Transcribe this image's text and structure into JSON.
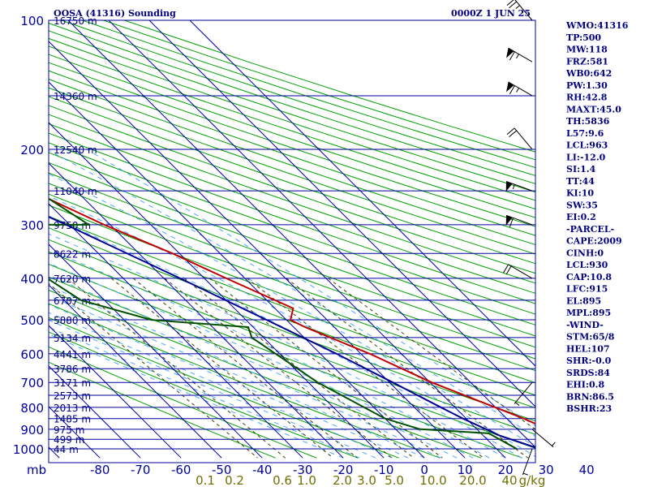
{
  "header": {
    "title": "OOSA (41316) Sounding",
    "time": "0000Z  1 JUN 25"
  },
  "chart_data": {
    "type": "line",
    "title": "OOSA (41316) Sounding",
    "subtitle": "0000Z  1 JUN 25",
    "y_unit": "mb",
    "x_unit_label": "mb",
    "mixing_unit": "g/kg",
    "pressure_levels": [
      100,
      200,
      300,
      400,
      500,
      600,
      700,
      800,
      900,
      1000
    ],
    "temperature_ticks": [
      -80,
      -70,
      -60,
      -50,
      -40,
      -30,
      -20,
      -10,
      0,
      10,
      20,
      30,
      40
    ],
    "xlim": [
      -80,
      40
    ],
    "ylim": [
      1050,
      100
    ],
    "mixing_ratio_labels": [
      "0.1",
      "0.2",
      "0.6",
      "1.0",
      "2.0",
      "3.0",
      "5.0",
      "10.0",
      "20.0",
      "40",
      "g/kg"
    ],
    "height_labels": [
      {
        "p": 100,
        "label": "16750 m"
      },
      {
        "p": 150,
        "label": "14360 m"
      },
      {
        "p": 200,
        "label": "12540 m"
      },
      {
        "p": 250,
        "label": "11040 m"
      },
      {
        "p": 300,
        "label": "9750 m"
      },
      {
        "p": 350,
        "label": "8622 m"
      },
      {
        "p": 400,
        "label": "7620 m"
      },
      {
        "p": 450,
        "label": "6707 m"
      },
      {
        "p": 500,
        "label": "5880 m"
      },
      {
        "p": 550,
        "label": "5134 m"
      },
      {
        "p": 600,
        "label": "4441 m"
      },
      {
        "p": 650,
        "label": "3786 m"
      },
      {
        "p": 700,
        "label": "3171 m"
      },
      {
        "p": 750,
        "label": "2573 m"
      },
      {
        "p": 800,
        "label": "2013 m"
      },
      {
        "p": 850,
        "label": "1485 m"
      },
      {
        "p": 900,
        "label": "975 m"
      },
      {
        "p": 950,
        "label": "499 m"
      },
      {
        "p": 1000,
        "label": "44 m"
      }
    ],
    "series": [
      {
        "name": "Temperature",
        "color": "#c00000",
        "points": [
          [
            1000,
            30.6
          ],
          [
            925,
            38.5
          ],
          [
            910,
            38.1
          ],
          [
            850,
            34.2
          ],
          [
            700,
            20.4
          ],
          [
            600,
            12.2
          ],
          [
            520,
            2.8
          ],
          [
            500,
            1.0
          ],
          [
            470,
            4.5
          ],
          [
            400,
            -4.6
          ],
          [
            350,
            -11.7
          ],
          [
            300,
            -21.5
          ],
          [
            260,
            -29.0
          ],
          [
            240,
            -36.5
          ],
          [
            200,
            -46.5
          ],
          [
            150,
            -63.0
          ],
          [
            125,
            -71.5
          ],
          [
            100,
            -80.0
          ]
        ]
      },
      {
        "name": "Dewpoint",
        "color": "#005000",
        "points": [
          [
            1000,
            25.0
          ],
          [
            920,
            21.9
          ],
          [
            900,
            6.0
          ],
          [
            850,
            0.0
          ],
          [
            700,
            -7.7
          ],
          [
            550,
            -12.9
          ],
          [
            520,
            -11.2
          ],
          [
            500,
            -33.3
          ],
          [
            450,
            -45.8
          ],
          [
            330,
            -53.5
          ],
          [
            300,
            -54.5
          ],
          [
            300,
            -25.3
          ],
          [
            260,
            -28.8
          ],
          [
            250,
            -36.2
          ],
          [
            235,
            -34.9
          ],
          [
            225,
            -45.0
          ],
          [
            200,
            -47.8
          ],
          [
            190,
            -49.2
          ],
          [
            180,
            -60.0
          ],
          [
            170,
            -59.5
          ],
          [
            160,
            -65.0
          ],
          [
            150,
            -69.5
          ],
          [
            120,
            -66.0
          ],
          [
            120,
            -77.0
          ],
          [
            110,
            -78.0
          ],
          [
            105,
            -76.8
          ],
          [
            100,
            -86.0
          ]
        ]
      },
      {
        "name": "Parcel",
        "color": "#000090",
        "points": [
          [
            1000,
            30.6
          ],
          [
            930,
            24.0
          ],
          [
            850,
            19.2
          ],
          [
            800,
            16.5
          ],
          [
            700,
            10.8
          ],
          [
            600,
            4.0
          ],
          [
            500,
            -4.9
          ],
          [
            400,
            -16.0
          ],
          [
            300,
            -30.9
          ],
          [
            250,
            -40.8
          ],
          [
            200,
            -52.3
          ],
          [
            150,
            -66.0
          ],
          [
            100,
            -83.0
          ]
        ]
      }
    ],
    "wind_barbs": [
      {
        "p": 100,
        "dir": 320,
        "spd": 25
      },
      {
        "p": 125,
        "dir": 300,
        "spd": 65
      },
      {
        "p": 150,
        "dir": 300,
        "spd": 65
      },
      {
        "p": 200,
        "dir": 320,
        "spd": 20
      },
      {
        "p": 250,
        "dir": 290,
        "spd": 55
      },
      {
        "p": 300,
        "dir": 290,
        "spd": 60
      },
      {
        "p": 400,
        "dir": 300,
        "spd": 20
      },
      {
        "p": 700,
        "dir": 220,
        "spd": 5
      },
      {
        "p": 900,
        "dir": 130,
        "spd": 5
      },
      {
        "p": 1000,
        "dir": 200,
        "spd": 5
      }
    ],
    "indices": [
      "WMO:41316",
      "TP:500",
      "MW:118",
      "FRZ:581",
      "WB0:642",
      "PW:1.30",
      "RH:42.8",
      "MAXT:45.0",
      "TH:5836",
      "L57:9.6",
      "LCL:963",
      "LI:-12.0",
      "SI:1.4",
      "TT:44",
      "KI:10",
      "SW:35",
      "EI:0.2",
      "-PARCEL-",
      "CAPE:2009",
      "CINH:0",
      "LCL:930",
      "CAP:10.8",
      "LFC:915",
      "EL:895",
      "MPL:895",
      "-WIND-",
      "STM:65/8",
      "HEL:107",
      "SHR:-0.0",
      "SRDS:84",
      "EHI:0.8",
      "BRN:86.5",
      "BSHR:23"
    ]
  },
  "colors": {
    "isotherm": "#0000a0",
    "isobar": "#0000a0",
    "dry_adiabat": "#00a000",
    "moist_adiabat": "#4da6ff",
    "mixing_ratio": "#404000",
    "text": "#000080"
  }
}
